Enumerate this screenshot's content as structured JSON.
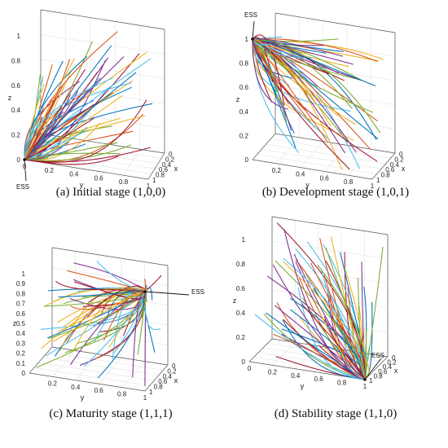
{
  "chart_data": [
    {
      "type": "line",
      "title": "(a) Initial stage (1,0,0)",
      "xlabel": "x",
      "ylabel": "y",
      "zlabel": "z",
      "xlim": [
        0,
        1
      ],
      "ylim": [
        0,
        1
      ],
      "zlim": [
        0,
        1
      ],
      "x_ticks": [
        "0",
        "0.2",
        "0.4",
        "0.6",
        "0.8",
        "1"
      ],
      "y_ticks": [
        "0",
        "0.2",
        "0.4",
        "0.6",
        "0.8",
        "1"
      ],
      "z_ticks": [
        "0",
        "0.2",
        "0.4",
        "0.6",
        "0.8",
        "1"
      ],
      "grid": true,
      "ess_label": "ESS",
      "ess_point": {
        "x": 1,
        "y": 0,
        "z": 0
      },
      "trajectory_behavior": "converge"
    },
    {
      "type": "line",
      "title": "(b) Development stage (1,0,1)",
      "xlabel": "x",
      "ylabel": "y",
      "zlabel": "z",
      "xlim": [
        0,
        1
      ],
      "ylim": [
        0,
        1
      ],
      "zlim": [
        0,
        1
      ],
      "x_ticks": [
        "0",
        "0.2",
        "0.4",
        "0.6",
        "0.8",
        "1"
      ],
      "y_ticks": [
        "0.2",
        "0.4",
        "0.6",
        "0.8",
        "1"
      ],
      "z_ticks": [
        "0",
        "0.2",
        "0.4",
        "0.6",
        "0.8",
        "1"
      ],
      "grid": true,
      "ess_label": "ESS",
      "ess_point": {
        "x": 1,
        "y": 0,
        "z": 1
      },
      "trajectory_behavior": "converge"
    },
    {
      "type": "line",
      "title": "(c) Maturity stage (1,1,1)",
      "xlabel": "x",
      "ylabel": "y",
      "zlabel": "z",
      "xlim": [
        0,
        1
      ],
      "ylim": [
        0,
        1
      ],
      "zlim": [
        0,
        1
      ],
      "x_ticks": [
        "0",
        "0.2",
        "0.4",
        "0.6",
        "0.8",
        "1"
      ],
      "y_ticks": [
        "0.2",
        "0.4",
        "0.6",
        "0.8",
        "1"
      ],
      "z_ticks": [
        "0",
        "0.1",
        "0.2",
        "0.3",
        "0.4",
        "0.5",
        "0.6",
        "0.7",
        "0.8",
        "0.9",
        "1"
      ],
      "grid": true,
      "ess_label": "ESS",
      "ess_point": {
        "x": 1,
        "y": 1,
        "z": 1
      },
      "trajectory_behavior": "converge"
    },
    {
      "type": "line",
      "title": "(d) Stability stage (1,1,0)",
      "xlabel": "x",
      "ylabel": "y",
      "zlabel": "z",
      "xlim": [
        0,
        1
      ],
      "ylim": [
        0,
        1
      ],
      "zlim": [
        0,
        1
      ],
      "x_ticks": [
        "0",
        "0.2",
        "0.4",
        "0.6",
        "0.8",
        "1"
      ],
      "y_ticks": [
        "0",
        "0.2",
        "0.4",
        "0.6",
        "0.8",
        "1"
      ],
      "z_ticks": [
        "0",
        "0.2",
        "0.4",
        "0.6",
        "0.8",
        "1"
      ],
      "grid": true,
      "ess_label": "ESS",
      "ess_point": {
        "x": 1,
        "y": 1,
        "z": 0
      },
      "trajectory_behavior": "converge"
    }
  ],
  "palette": [
    "#0072BD",
    "#D95319",
    "#EDB120",
    "#7E2F8E",
    "#77AC30",
    "#4DBEEE",
    "#A2142F"
  ]
}
